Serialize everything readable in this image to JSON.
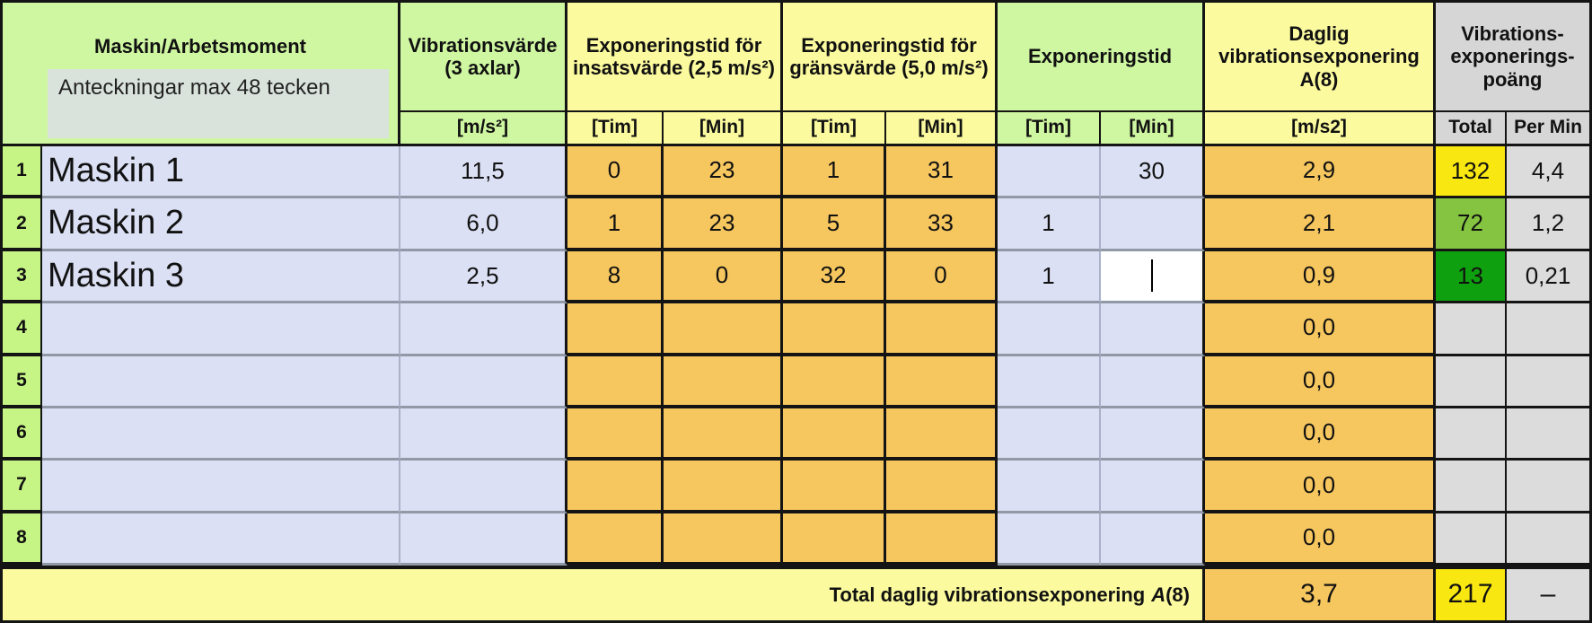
{
  "colors": {
    "header_green": "#CFF7A1",
    "rownum_green": "#C6F485",
    "pale_yellow": "#FBFA9E",
    "header_gray": "#D6D6D6",
    "cell_gray": "#DCDCDC",
    "cell_lavender": "#DBE0F4",
    "cell_orange": "#F7C75F",
    "warn_yellow": "#F8E711",
    "ok_green_light": "#85C440",
    "ok_green_dark": "#0FA00F",
    "edit_white": "#FFFFFF"
  },
  "header": {
    "machine": {
      "title": "Maskin/Arbetsmoment",
      "note": "Anteckningar max 48 tecken"
    },
    "vibration": {
      "title": "Vibrationsvärde (3 axlar)",
      "unit": "[m/s²]"
    },
    "insats": {
      "title": "Exponeringstid för insatsvärde (2,5 m/s²)",
      "tim": "[Tim]",
      "min": "[Min]"
    },
    "grans": {
      "title": "Exponeringstid för gränsvärde (5,0 m/s²)",
      "tim": "[Tim]",
      "min": "[Min]"
    },
    "exposure": {
      "title": "Exponeringstid",
      "tim": "[Tim]",
      "min": "[Min]"
    },
    "daily": {
      "title": "Daglig vibrationsexponering A(8)",
      "unit": "[m/s2]"
    },
    "points": {
      "title": "Vibrations-exponerings-poäng",
      "total": "Total",
      "per_min": "Per Min"
    }
  },
  "rows": [
    {
      "num": "1",
      "machine": "Maskin 1",
      "vibration": "11,5",
      "insats_tim": "0",
      "insats_min": "23",
      "grans_tim": "1",
      "grans_min": "31",
      "exp_tim": "",
      "exp_min": "30",
      "a8": "2,9",
      "total": "132",
      "total_bg": "#F8E711",
      "permin": "4,4",
      "editing": false
    },
    {
      "num": "2",
      "machine": "Maskin 2",
      "vibration": "6,0",
      "insats_tim": "1",
      "insats_min": "23",
      "grans_tim": "5",
      "grans_min": "33",
      "exp_tim": "1",
      "exp_min": "",
      "a8": "2,1",
      "total": "72",
      "total_bg": "#85C440",
      "permin": "1,2",
      "editing": false
    },
    {
      "num": "3",
      "machine": "Maskin 3",
      "vibration": "2,5",
      "insats_tim": "8",
      "insats_min": "0",
      "grans_tim": "32",
      "grans_min": "0",
      "exp_tim": "1",
      "exp_min": "",
      "a8": "0,9",
      "total": "13",
      "total_bg": "#0FA00F",
      "permin": "0,21",
      "editing": true
    },
    {
      "num": "4",
      "machine": "",
      "vibration": "",
      "insats_tim": "",
      "insats_min": "",
      "grans_tim": "",
      "grans_min": "",
      "exp_tim": "",
      "exp_min": "",
      "a8": "0,0",
      "total": "",
      "total_bg": null,
      "permin": "",
      "editing": false
    },
    {
      "num": "5",
      "machine": "",
      "vibration": "",
      "insats_tim": "",
      "insats_min": "",
      "grans_tim": "",
      "grans_min": "",
      "exp_tim": "",
      "exp_min": "",
      "a8": "0,0",
      "total": "",
      "total_bg": null,
      "permin": "",
      "editing": false
    },
    {
      "num": "6",
      "machine": "",
      "vibration": "",
      "insats_tim": "",
      "insats_min": "",
      "grans_tim": "",
      "grans_min": "",
      "exp_tim": "",
      "exp_min": "",
      "a8": "0,0",
      "total": "",
      "total_bg": null,
      "permin": "",
      "editing": false
    },
    {
      "num": "7",
      "machine": "",
      "vibration": "",
      "insats_tim": "",
      "insats_min": "",
      "grans_tim": "",
      "grans_min": "",
      "exp_tim": "",
      "exp_min": "",
      "a8": "0,0",
      "total": "",
      "total_bg": null,
      "permin": "",
      "editing": false
    },
    {
      "num": "8",
      "machine": "",
      "vibration": "",
      "insats_tim": "",
      "insats_min": "",
      "grans_tim": "",
      "grans_min": "",
      "exp_tim": "",
      "exp_min": "",
      "a8": "0,0",
      "total": "",
      "total_bg": null,
      "permin": "",
      "editing": false
    }
  ],
  "footer": {
    "label": "Total daglig vibrationsexponering",
    "label_italic": "A",
    "label_paren": "(8)",
    "a8": "3,7",
    "total": "217",
    "total_bg": "#F8E711",
    "per_min": "–"
  }
}
